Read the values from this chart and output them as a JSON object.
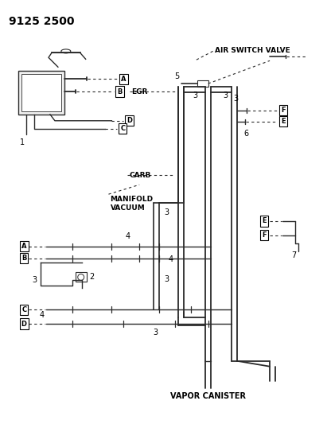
{
  "bg": "#ffffff",
  "lc": "#2a2a2a",
  "part_number": "9125 2500",
  "labels": {
    "air_switch_valve": "AIR SWITCH VALVE",
    "egr": "EGR",
    "carb": "CARB",
    "manifold_vacuum": "MANIFOLD\nVACUUM",
    "vapor_canister": "VAPOR CANISTER"
  },
  "pipe_lw": 1.5,
  "thin_lw": 1.0,
  "dash_lw": 0.8
}
